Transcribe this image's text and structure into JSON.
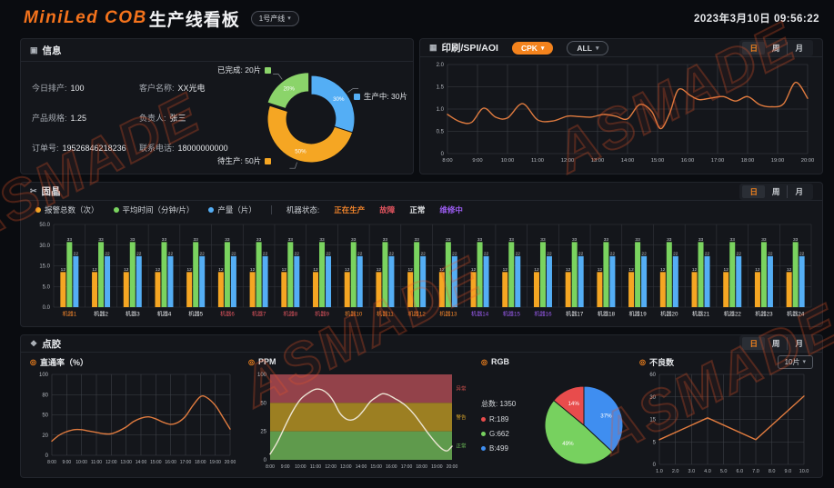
{
  "watermark": "ASMADE",
  "icons": {
    "caret_down": "▾",
    "info_panel": "▣",
    "print_panel": "▦",
    "diebond_panel": "✂",
    "dispense_panel": "❖",
    "sub_ring": "◎"
  },
  "header": {
    "brand": "MiniLed COB",
    "title": "生产线看板",
    "line_select": "1号产线",
    "datetime": "2023年3月10日  09:56:22"
  },
  "period_tabs": {
    "day": "日",
    "week": "周",
    "month": "月"
  },
  "info_panel": {
    "title": "信息",
    "fields": [
      {
        "label": "今日排产:",
        "value": "100"
      },
      {
        "label": "客户名称:",
        "value": "XX光电"
      },
      {
        "label": "产品规格:",
        "value": "1.25"
      },
      {
        "label": "负责人:",
        "value": "张三"
      },
      {
        "label": "订单号:",
        "value": "19526846218236"
      },
      {
        "label": "联系电话:",
        "value": "18000000000"
      }
    ],
    "legend": [
      {
        "text": "已完成: 20片"
      },
      {
        "text": "生产中: 30片"
      },
      {
        "text": "待生产: 50片"
      }
    ]
  },
  "print_panel": {
    "title": "印刷/SPI/AOI",
    "cpk_button": "CPK",
    "all_button": "ALL"
  },
  "diebond_panel": {
    "title": "固晶",
    "state_label": "机器状态:",
    "state_legend": [
      {
        "label": "正在生产",
        "key": "producing"
      },
      {
        "label": "故障",
        "key": "fault"
      },
      {
        "label": "正常",
        "key": "normal"
      },
      {
        "label": "维修中",
        "key": "repair"
      }
    ]
  },
  "dispense_panel": {
    "title": "点胶",
    "pass_title": "直通率（%）",
    "ppm_title": "PPM",
    "rgb_title": "RGB",
    "defect_title": "不良数",
    "defect_select": "10片",
    "rgb_total": "总数: 1350",
    "rgb_r": "R:189",
    "rgb_g": "G:662",
    "rgb_b": "B:499"
  },
  "chart_data": [
    {
      "id": "donut",
      "type": "pie",
      "donut": true,
      "start_angle": -162,
      "title": "生产完成情况",
      "slices": [
        {
          "name": "已完成",
          "value": 20,
          "pct": "20%",
          "color": "#8bd46a",
          "offset": true
        },
        {
          "name": "生产中",
          "value": 30,
          "pct": "30%",
          "color": "#54aef5"
        },
        {
          "name": "待生产",
          "value": 50,
          "pct": "50%",
          "color": "#f5a623"
        }
      ]
    },
    {
      "id": "cpk",
      "type": "line",
      "color": "#e07b3f",
      "smooth": true,
      "m": {
        "l": 26,
        "r": 10,
        "t": 6,
        "b": 15
      },
      "x_label_size": 5.8,
      "x_range": [
        8,
        20
      ],
      "x_ticks": [
        "8:00",
        "9:00",
        "10:00",
        "11:00",
        "12:00",
        "13:00",
        "14:00",
        "15:00",
        "16:00",
        "17:00",
        "18:00",
        "19:00",
        "20:00"
      ],
      "y_ticks": [
        0,
        0.5,
        1.0,
        1.5,
        2.0
      ],
      "y_tick_labels": [
        "0",
        "0.5",
        "1.0",
        "1.5",
        "2.0"
      ],
      "points": [
        [
          8,
          0.88
        ],
        [
          8.4,
          0.72
        ],
        [
          8.8,
          0.7
        ],
        [
          9.2,
          1.02
        ],
        [
          9.6,
          0.82
        ],
        [
          10,
          0.8
        ],
        [
          10.5,
          1.12
        ],
        [
          11,
          0.76
        ],
        [
          11.5,
          0.73
        ],
        [
          12,
          0.84
        ],
        [
          12.4,
          0.83
        ],
        [
          12.8,
          0.82
        ],
        [
          13.2,
          0.88
        ],
        [
          13.6,
          0.84
        ],
        [
          14,
          0.78
        ],
        [
          14.4,
          1.1
        ],
        [
          14.8,
          0.95
        ],
        [
          15.1,
          0.56
        ],
        [
          15.4,
          0.9
        ],
        [
          15.7,
          1.44
        ],
        [
          16.1,
          1.3
        ],
        [
          16.4,
          1.21
        ],
        [
          16.8,
          1.25
        ],
        [
          17.2,
          1.28
        ],
        [
          17.6,
          1.18
        ],
        [
          18,
          1.28
        ],
        [
          18.4,
          1.1
        ],
        [
          18.8,
          1.05
        ],
        [
          19.2,
          1.12
        ],
        [
          19.6,
          1.6
        ],
        [
          20,
          1.24
        ]
      ]
    },
    {
      "id": "machines",
      "type": "bar",
      "m": {
        "l": 30,
        "r": 6,
        "t": 10,
        "b": 14
      },
      "y_ticks": [
        0,
        5,
        15,
        30,
        50
      ],
      "y_tick_labels": [
        "0.0",
        "5.0",
        "15.0",
        "30.0",
        "50.0"
      ],
      "series": [
        {
          "name": "报警总数（次）",
          "color": "#f5a623"
        },
        {
          "name": "平均时间（分钟/片）",
          "color": "#7ad35f"
        },
        {
          "name": "产量（片）",
          "color": "#54aef5"
        }
      ],
      "state_colors": {
        "producing": "#f5862b",
        "fault": "#e0545e",
        "normal": "#e4e6e9",
        "repair": "#9b5cf0"
      },
      "machines": [
        {
          "name": "机器1",
          "state": "producing",
          "values": [
            12,
            33,
            22
          ]
        },
        {
          "name": "机器2",
          "state": "normal",
          "values": [
            12,
            33,
            22
          ]
        },
        {
          "name": "机器3",
          "state": "normal",
          "values": [
            12,
            33,
            22
          ]
        },
        {
          "name": "机器4",
          "state": "normal",
          "values": [
            12,
            33,
            22
          ]
        },
        {
          "name": "机器5",
          "state": "normal",
          "values": [
            12,
            33,
            22
          ]
        },
        {
          "name": "机器6",
          "state": "fault",
          "values": [
            12,
            33,
            22
          ]
        },
        {
          "name": "机器7",
          "state": "fault",
          "values": [
            12,
            33,
            22
          ]
        },
        {
          "name": "机器8",
          "state": "fault",
          "values": [
            12,
            33,
            22
          ]
        },
        {
          "name": "机器9",
          "state": "fault",
          "values": [
            12,
            33,
            22
          ]
        },
        {
          "name": "机器10",
          "state": "producing",
          "values": [
            12,
            33,
            22
          ]
        },
        {
          "name": "机器11",
          "state": "producing",
          "values": [
            12,
            33,
            22
          ]
        },
        {
          "name": "机器12",
          "state": "producing",
          "values": [
            12,
            33,
            22
          ]
        },
        {
          "name": "机器13",
          "state": "producing",
          "values": [
            12,
            33,
            22
          ]
        },
        {
          "name": "机器14",
          "state": "repair",
          "values": [
            12,
            33,
            22
          ]
        },
        {
          "name": "机器15",
          "state": "repair",
          "values": [
            12,
            33,
            22
          ]
        },
        {
          "name": "机器16",
          "state": "repair",
          "values": [
            12,
            33,
            22
          ]
        },
        {
          "name": "机器17",
          "state": "normal",
          "values": [
            12,
            33,
            22
          ]
        },
        {
          "name": "机器18",
          "state": "normal",
          "values": [
            12,
            33,
            22
          ]
        },
        {
          "name": "机器19",
          "state": "normal",
          "values": [
            12,
            33,
            22
          ]
        },
        {
          "name": "机器20",
          "state": "normal",
          "values": [
            12,
            33,
            22
          ]
        },
        {
          "name": "机器21",
          "state": "normal",
          "values": [
            12,
            33,
            22
          ]
        },
        {
          "name": "机器22",
          "state": "normal",
          "values": [
            12,
            33,
            22
          ]
        },
        {
          "name": "机器23",
          "state": "normal",
          "values": [
            12,
            33,
            22
          ]
        },
        {
          "name": "机器24",
          "state": "normal",
          "values": [
            12,
            33,
            22
          ]
        }
      ]
    },
    {
      "id": "passrate",
      "type": "line",
      "color": "#e07b3f",
      "smooth": true,
      "m": {
        "l": 24,
        "r": 8,
        "t": 6,
        "b": 14
      },
      "x_label_size": 5.0,
      "x_range": [
        8,
        20
      ],
      "x_ticks": [
        "8:00",
        "9:00",
        "10:00",
        "11:00",
        "12:00",
        "13:00",
        "14:00",
        "15:00",
        "16:00",
        "17:00",
        "18:00",
        "19:00",
        "20:00"
      ],
      "y_ticks": [
        0,
        20,
        50,
        80,
        100
      ],
      "y_tick_labels": [
        "0",
        "20",
        "50",
        "80",
        "100"
      ],
      "points": [
        [
          8,
          14
        ],
        [
          8.5,
          20
        ],
        [
          9,
          25
        ],
        [
          9.5,
          28
        ],
        [
          10,
          28
        ],
        [
          10.5,
          26
        ],
        [
          11,
          24
        ],
        [
          11.5,
          22
        ],
        [
          12,
          22
        ],
        [
          12.5,
          26
        ],
        [
          13,
          32
        ],
        [
          13.5,
          40
        ],
        [
          14,
          45
        ],
        [
          14.5,
          47
        ],
        [
          15,
          44
        ],
        [
          15.5,
          39
        ],
        [
          16,
          36
        ],
        [
          16.5,
          39
        ],
        [
          17,
          48
        ],
        [
          17.5,
          64
        ],
        [
          18,
          77
        ],
        [
          18.4,
          76
        ],
        [
          19,
          64
        ],
        [
          19.5,
          47
        ],
        [
          20,
          29
        ]
      ]
    },
    {
      "id": "ppm",
      "type": "line",
      "color": "#ece5d4",
      "smooth": true,
      "m": {
        "l": 24,
        "r": 20,
        "t": 6,
        "b": 14
      },
      "x_label_size": 5.0,
      "x_range": [
        8,
        20
      ],
      "x_ticks": [
        "8:00",
        "9:00",
        "10:00",
        "11:00",
        "12:00",
        "13:00",
        "14:00",
        "15:00",
        "16:00",
        "17:00",
        "18:00",
        "19:00",
        "20:00"
      ],
      "y_ticks": [
        0,
        25,
        50,
        100
      ],
      "y_tick_labels": [
        "0",
        "25",
        "50",
        "100"
      ],
      "bands": [
        {
          "from": 50,
          "to": 100,
          "color": "#93424a",
          "label": "异常",
          "label_color": "#d9534f"
        },
        {
          "from": 25,
          "to": 50,
          "color": "#9c7f22",
          "label": "警告",
          "label_color": "#d9a52a"
        },
        {
          "from": 0,
          "to": 25,
          "color": "#5f9a4c",
          "label": "正常",
          "label_color": "#6fc15a"
        }
      ],
      "points": [
        [
          8,
          5
        ],
        [
          8.5,
          16
        ],
        [
          9,
          30
        ],
        [
          9.5,
          43
        ],
        [
          10,
          56
        ],
        [
          10.5,
          67
        ],
        [
          11,
          74
        ],
        [
          11.4,
          73
        ],
        [
          11.8,
          66
        ],
        [
          12.2,
          52
        ],
        [
          12.6,
          41
        ],
        [
          13,
          36
        ],
        [
          13.4,
          35
        ],
        [
          13.8,
          38
        ],
        [
          14.2,
          44
        ],
        [
          14.6,
          52
        ],
        [
          15,
          60
        ],
        [
          15.4,
          66
        ],
        [
          15.8,
          64
        ],
        [
          16.2,
          58
        ],
        [
          16.6,
          52
        ],
        [
          17,
          47
        ],
        [
          17.5,
          40
        ],
        [
          18,
          31
        ],
        [
          18.5,
          22
        ],
        [
          19,
          14
        ],
        [
          19.4,
          9
        ],
        [
          19.7,
          8
        ],
        [
          20,
          12
        ]
      ]
    },
    {
      "id": "rgb",
      "type": "pie",
      "donut": false,
      "start_angle": -90,
      "title": "RGB",
      "slices": [
        {
          "name": "B",
          "value": 499,
          "pct": "37%",
          "color": "#3f8ef0"
        },
        {
          "name": "G",
          "value": 662,
          "pct": "49%",
          "color": "#77d15f"
        },
        {
          "name": "R",
          "value": 189,
          "pct": "14%",
          "color": "#e84c4c"
        }
      ]
    },
    {
      "id": "defects",
      "type": "line",
      "color": "#e07b3f",
      "smooth": false,
      "m": {
        "l": 22,
        "r": 10,
        "t": 6,
        "b": 14
      },
      "x_label_size": 5.5,
      "x_range": [
        1,
        10
      ],
      "x_ticks": [
        "1.0",
        "2.0",
        "3.0",
        "4.0",
        "5.0",
        "6.0",
        "7.0",
        "8.0",
        "9.0",
        "10.0"
      ],
      "y_ticks": [
        0,
        5,
        15,
        30,
        60
      ],
      "y_tick_labels": [
        "0",
        "5",
        "15",
        "30",
        "60"
      ],
      "points": [
        [
          1,
          6
        ],
        [
          4,
          16
        ],
        [
          7,
          6
        ],
        [
          10,
          31
        ]
      ]
    }
  ]
}
